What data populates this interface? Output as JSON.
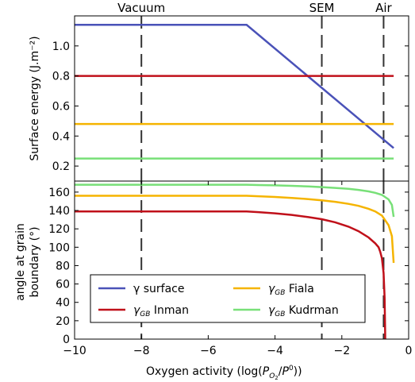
{
  "chart_data": [
    {
      "type": "line",
      "title": "",
      "xlabel": "",
      "ylabel": "Surface energy (J.m⁻²)",
      "xlim": [
        -10,
        0
      ],
      "ylim": [
        0.1,
        1.2
      ],
      "x_ticks": [],
      "y_ticks": [
        {
          "v": 0.2,
          "label": "0.2"
        },
        {
          "v": 0.4,
          "label": "0.4"
        },
        {
          "v": 0.6,
          "label": "0.6"
        },
        {
          "v": 0.8,
          "label": "0.8"
        },
        {
          "v": 1.0,
          "label": "1.0"
        }
      ],
      "series": [
        {
          "name": "γ surface",
          "color": "#4a52b8",
          "points": [
            [
              -10,
              1.14
            ],
            [
              -4.85,
              1.14
            ],
            [
              -0.45,
              0.32
            ]
          ]
        },
        {
          "name": "γGB Inman",
          "color": "#c0101a",
          "points": [
            [
              -10,
              0.8
            ],
            [
              -0.45,
              0.8
            ]
          ]
        },
        {
          "name": "γGB Fiala",
          "color": "#f5b400",
          "points": [
            [
              -10,
              0.48
            ],
            [
              -0.45,
              0.48
            ]
          ]
        },
        {
          "name": "γGB Kudrman",
          "color": "#78e078",
          "points": [
            [
              -10,
              0.25
            ],
            [
              -0.45,
              0.25
            ]
          ]
        }
      ],
      "vlines": [
        {
          "x": -8,
          "label": "Vacuum"
        },
        {
          "x": -2.6,
          "label": "SEM"
        },
        {
          "x": -0.75,
          "label": "Air"
        }
      ]
    },
    {
      "type": "line",
      "title": "",
      "xlabel": "Oxygen activity",
      "ylabel_lines": [
        "angle at grain",
        "boundary (°)"
      ],
      "xlim": [
        -10,
        0
      ],
      "ylim": [
        0,
        172
      ],
      "x_ticks": [
        {
          "v": -10,
          "label": "−10"
        },
        {
          "v": -8,
          "label": "−8"
        },
        {
          "v": -6,
          "label": "−6"
        },
        {
          "v": -4,
          "label": "−4"
        },
        {
          "v": -2,
          "label": "−2"
        },
        {
          "v": 0,
          "label": "0"
        }
      ],
      "y_ticks": [
        {
          "v": 0,
          "label": "0"
        },
        {
          "v": 20,
          "label": "20"
        },
        {
          "v": 40,
          "label": "40"
        },
        {
          "v": 60,
          "label": "60"
        },
        {
          "v": 80,
          "label": "80"
        },
        {
          "v": 100,
          "label": "100"
        },
        {
          "v": 120,
          "label": "120"
        },
        {
          "v": 140,
          "label": "140"
        },
        {
          "v": 160,
          "label": "160"
        }
      ],
      "series": [
        {
          "name": "γGB Inman",
          "color": "#c0101a",
          "points": [
            [
              -10,
              139
            ],
            [
              -4.85,
              139
            ],
            [
              -4.5,
              138.2
            ],
            [
              -4,
              136.9
            ],
            [
              -3.5,
              135.2
            ],
            [
              -3,
              132.8
            ],
            [
              -2.6,
              130.5
            ],
            [
              -2.2,
              127.1
            ],
            [
              -1.8,
              122.4
            ],
            [
              -1.5,
              117.5
            ],
            [
              -1.2,
              110.6
            ],
            [
              -1,
              104.2
            ],
            [
              -0.9,
              100
            ],
            [
              -0.85,
              95
            ],
            [
              -0.8,
              88
            ],
            [
              -0.75,
              72
            ],
            [
              -0.72,
              45
            ],
            [
              -0.7,
              0
            ]
          ]
        },
        {
          "name": "γGB Fiala",
          "color": "#f5b400",
          "points": [
            [
              -10,
              156
            ],
            [
              -4.85,
              156
            ],
            [
              -4.5,
              155.5
            ],
            [
              -4,
              154.7
            ],
            [
              -3.5,
              153.7
            ],
            [
              -3,
              152.4
            ],
            [
              -2.6,
              151
            ],
            [
              -2.2,
              149.4
            ],
            [
              -1.8,
              147.2
            ],
            [
              -1.5,
              145
            ],
            [
              -1.2,
              141.8
            ],
            [
              -1,
              139
            ],
            [
              -0.8,
              134.5
            ],
            [
              -0.6,
              124
            ],
            [
              -0.5,
              112
            ],
            [
              -0.45,
              83
            ]
          ]
        },
        {
          "name": "γGB Kudrman",
          "color": "#78e078",
          "points": [
            [
              -10,
              168
            ],
            [
              -4.85,
              168
            ],
            [
              -4.5,
              167.7
            ],
            [
              -4,
              167.3
            ],
            [
              -3.5,
              166.8
            ],
            [
              -3,
              166.1
            ],
            [
              -2.6,
              165.4
            ],
            [
              -2.2,
              164.6
            ],
            [
              -1.8,
              163.5
            ],
            [
              -1.5,
              162.4
            ],
            [
              -1.2,
              160.8
            ],
            [
              -1,
              159.2
            ],
            [
              -0.8,
              157
            ],
            [
              -0.6,
              152
            ],
            [
              -0.5,
              146
            ],
            [
              -0.45,
              133
            ]
          ]
        }
      ],
      "vlines": [
        {
          "x": -8
        },
        {
          "x": -2.6
        },
        {
          "x": -0.75
        }
      ],
      "legend": {
        "placement": "lower-left",
        "items": [
          {
            "label": "γ surface",
            "color": "#4a52b8",
            "gamma_sub": ""
          },
          {
            "label": "Fiala",
            "color": "#f5b400",
            "gamma_sub": "GB"
          },
          {
            "label": "Inman",
            "color": "#c0101a",
            "gamma_sub": "GB"
          },
          {
            "label": "Kudrman",
            "color": "#78e078",
            "gamma_sub": "GB"
          }
        ]
      }
    }
  ]
}
